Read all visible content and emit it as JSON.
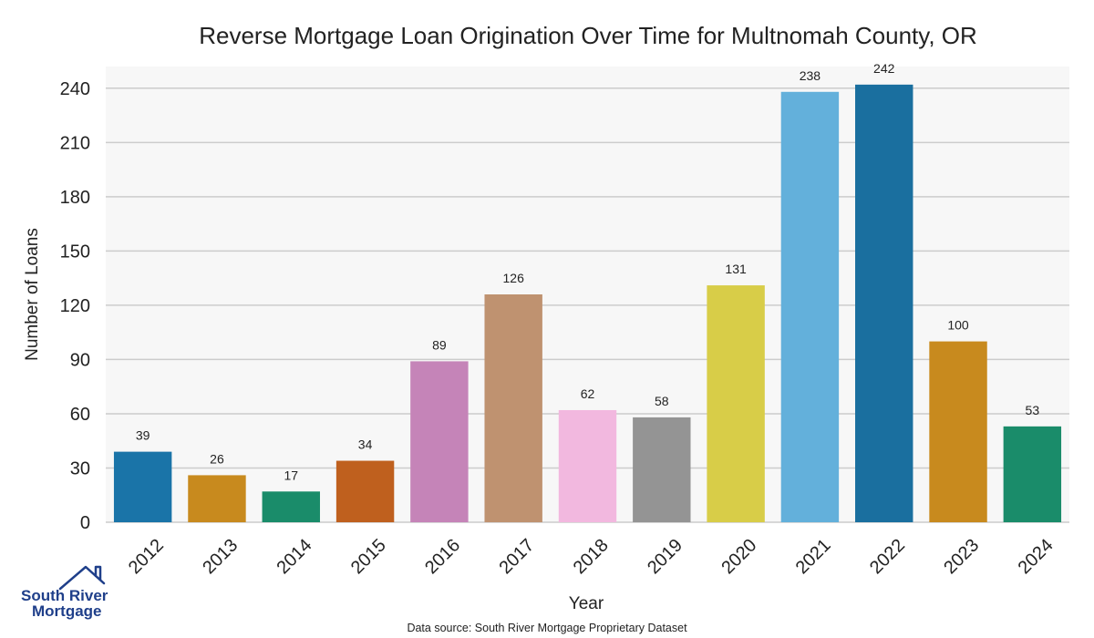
{
  "chart_data": {
    "type": "bar",
    "title": "Reverse Mortgage Loan Origination Over Time for Multnomah County, OR",
    "xlabel": "Year",
    "ylabel": "Number of Loans",
    "categories": [
      "2012",
      "2013",
      "2014",
      "2015",
      "2016",
      "2017",
      "2018",
      "2019",
      "2020",
      "2021",
      "2022",
      "2023",
      "2024"
    ],
    "values": [
      39,
      26,
      17,
      34,
      89,
      126,
      62,
      58,
      131,
      238,
      242,
      100,
      53
    ],
    "colors": [
      "#1a74a8",
      "#c88a1e",
      "#1a8c6a",
      "#bf601e",
      "#c584b8",
      "#bf9270",
      "#f2b8df",
      "#949494",
      "#d8cd48",
      "#63b0db",
      "#1a6f9f",
      "#c88a1e",
      "#1a8c6a"
    ],
    "ylim": [
      0,
      252
    ],
    "yticks": [
      0,
      30,
      60,
      90,
      120,
      150,
      180,
      210,
      240
    ],
    "grid": true,
    "background": "#f7f7f7",
    "source_note": "Data source: South River Mortgage Proprietary Dataset"
  },
  "logo": {
    "line1": "South River",
    "line2": "Mortgage",
    "color": "#1f3f8a"
  }
}
